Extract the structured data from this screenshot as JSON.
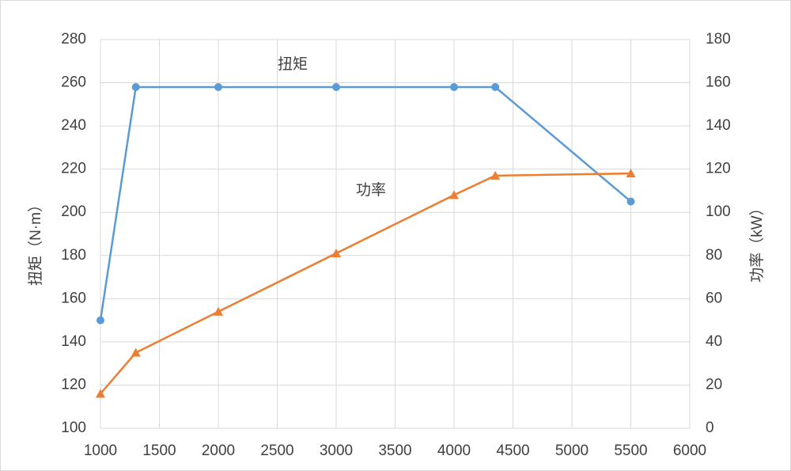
{
  "chart_data": {
    "type": "line",
    "x": [
      1000,
      1300,
      2000,
      3000,
      4000,
      4350,
      5500
    ],
    "series": [
      {
        "name": "扭矩",
        "color": "#5b9bd5",
        "marker": "circle",
        "axis": "y",
        "values": [
          150,
          258,
          258,
          258,
          258,
          258,
          205
        ]
      },
      {
        "name": "功率",
        "color": "#ed7d31",
        "marker": "triangle",
        "axis": "y2",
        "values": [
          16,
          35,
          54,
          81,
          108,
          117,
          118
        ]
      }
    ],
    "annotations": [
      "扭矩",
      "功率"
    ],
    "ylabel": "扭矩（N·m）",
    "y2label": "功率（kW）",
    "xlim": [
      1000,
      6000
    ],
    "xticks": [
      1000,
      1500,
      2000,
      2500,
      3000,
      3500,
      4000,
      4500,
      5000,
      5500,
      6000
    ],
    "ylim": [
      100,
      280
    ],
    "yticks": [
      100,
      120,
      140,
      160,
      180,
      200,
      220,
      240,
      260,
      280
    ],
    "y2lim": [
      0,
      180
    ],
    "y2ticks": [
      0,
      20,
      40,
      60,
      80,
      100,
      120,
      140,
      160,
      180
    ],
    "grid": true
  }
}
